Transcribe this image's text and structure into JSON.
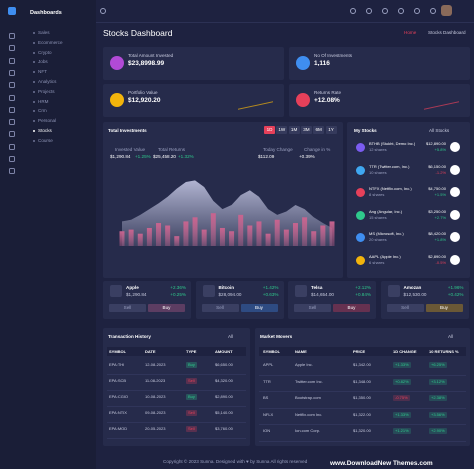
{
  "sidebar": {
    "title": "Dashboards",
    "items": [
      "Sales",
      "Ecommerce",
      "Crypto",
      "Jobs",
      "NFT",
      "Analytics",
      "Projects",
      "HRM",
      "Crm",
      "Personal",
      "Stocks",
      "Course"
    ],
    "active": 10
  },
  "page": {
    "title": "Stocks Dashboard",
    "breadcrumb": [
      "Home",
      "Stocks Dashboard"
    ]
  },
  "stats": [
    {
      "label": "Total Amount Invested",
      "value": "$23,8998.99",
      "color": "#b14ad6"
    },
    {
      "label": "No Of Investments",
      "value": "1,116",
      "color": "#3f8ef0"
    },
    {
      "label": "Portfolio Value",
      "value": "$12,920.20",
      "color": "#f2b40c"
    },
    {
      "label": "Returns Rate",
      "value": "+12.08%",
      "color": "#e6405a"
    }
  ],
  "investments": {
    "title": "Total Investments",
    "tabs": [
      "1D",
      "1W",
      "1M",
      "3M",
      "6M",
      "1Y"
    ],
    "metrics": [
      {
        "label": "Invested Value",
        "value": "$1,290.84",
        "change": "+1.25%"
      },
      {
        "label": "Total Returns",
        "value": "$25,458.20",
        "change": "+1.32%"
      },
      {
        "label": "Today Change",
        "value": "$112.09"
      },
      {
        "label": "Change in %",
        "value": "+0.39%"
      }
    ]
  },
  "chart_data": {
    "type": "area-bar",
    "ylim": [
      0,
      100
    ],
    "series": [
      {
        "type": "area",
        "color": "#b8bbd8",
        "values": [
          30,
          32,
          38,
          45,
          52,
          60,
          70,
          78,
          80,
          72,
          55,
          45,
          50,
          62,
          68,
          60,
          45,
          38,
          42,
          50,
          45,
          35,
          28,
          22
        ]
      },
      {
        "type": "bar",
        "color": "#c8648f",
        "values": [
          18,
          20,
          15,
          22,
          28,
          25,
          12,
          30,
          35,
          20,
          40,
          22,
          18,
          38,
          25,
          30,
          15,
          32,
          20,
          28,
          35,
          18,
          25,
          30
        ]
      }
    ]
  },
  "my_stocks": {
    "title": "My Stocks",
    "filter": "All Stocks",
    "items": [
      {
        "symbol": "BTHB (Stukht, Demo Inc.)",
        "shares": "12 shares",
        "price": "$12,890.00",
        "change": "+5.8%",
        "color": "#7b5cf0"
      },
      {
        "symbol": "TTR (Twitter.com, Inc.)",
        "shares": "10 shares",
        "price": "$6,150.00",
        "change": "-1.2%",
        "color": "#3fa7f0"
      },
      {
        "symbol": "NTFX (Netflix.com, Inc.)",
        "shares": "8 shares",
        "price": "$4,750.00",
        "change": "+1.5%",
        "color": "#e6405a"
      },
      {
        "symbol": "Ang (Angular, Inc.)",
        "shares": "15 shares",
        "price": "$3,250.00",
        "change": "+2.7%",
        "color": "#2fc98c"
      },
      {
        "symbol": "MS (Microsoft, Inc.)",
        "shares": "20 shares",
        "price": "$8,420.00",
        "change": "+1.8%",
        "color": "#3f8ef0"
      },
      {
        "symbol": "AAPL (Apple Inc.)",
        "shares": "6 shares",
        "price": "$2,890.00",
        "change": "-0.5%",
        "color": "#f2b40c"
      }
    ]
  },
  "stock_cards": {
    "sell": "Sell",
    "buy": "Buy",
    "items": [
      {
        "name": "Apple",
        "change": "+2.36%",
        "price": "$1,290.84",
        "price_change": "+0.25%",
        "color": "#c8648f"
      },
      {
        "name": "Bitcoin",
        "change": "+1.42%",
        "price": "$28,094.00",
        "price_change": "+0.63%",
        "color": "#3f8ef0"
      },
      {
        "name": "Telsa",
        "change": "+2.12%",
        "price": "$14,654.00",
        "price_change": "+0.84%",
        "color": "#e6405a"
      },
      {
        "name": "Amozan",
        "change": "+1.96%",
        "price": "$12,530.00",
        "price_change": "+0.42%",
        "color": "#f2b40c"
      }
    ]
  },
  "transactions": {
    "title": "Transaction History",
    "filter": "All",
    "columns": [
      "SYMBOL",
      "DATE",
      "TYPE",
      "AMOUNT"
    ],
    "rows": [
      [
        "EPA:THI",
        "12-08-2023",
        "Buy",
        "$6,650.00"
      ],
      [
        "EPA:SCB",
        "11-08-2023",
        "Sell",
        "$4,320.00"
      ],
      [
        "EPA:CGIO",
        "10-08-2023",
        "Buy",
        "$2,890.00"
      ],
      [
        "EPA:NTIX",
        "09-08-2023",
        "Sell",
        "$5,140.00"
      ],
      [
        "EPA:MOD",
        "20-05-2023",
        "Sell",
        "$3,760.00"
      ]
    ]
  },
  "market_movers": {
    "title": "Market Movers",
    "filter": "All",
    "columns": [
      "SYMBOL",
      "NAME",
      "PRICE",
      "1D CHANGE",
      "10 RETURNS %"
    ],
    "rows": [
      [
        "APPL",
        "Apple Inc.",
        "$1,342.00",
        "+1.33%",
        "+6.25%"
      ],
      [
        "TTR",
        "Twitter.com Inc.",
        "$1,348.00",
        "+0.82%",
        "+3.12%"
      ],
      [
        "BS",
        "Bootstrap.com",
        "$1,350.00",
        "-0.75%",
        "+2.38%"
      ],
      [
        "NFLX",
        "Netflix.com Inc.",
        "$1,322.00",
        "+1.33%",
        "+3.56%"
      ],
      [
        "ION",
        "Ion.com Corp.",
        "$1,320.00",
        "+1.21%",
        "+2.90%"
      ]
    ]
  },
  "footer": {
    "text": "Copyright © 2023 Sunna. Designed with ♥ by Sunna All rights reserved",
    "watermark": "www.DownloadNew Themes.com"
  }
}
